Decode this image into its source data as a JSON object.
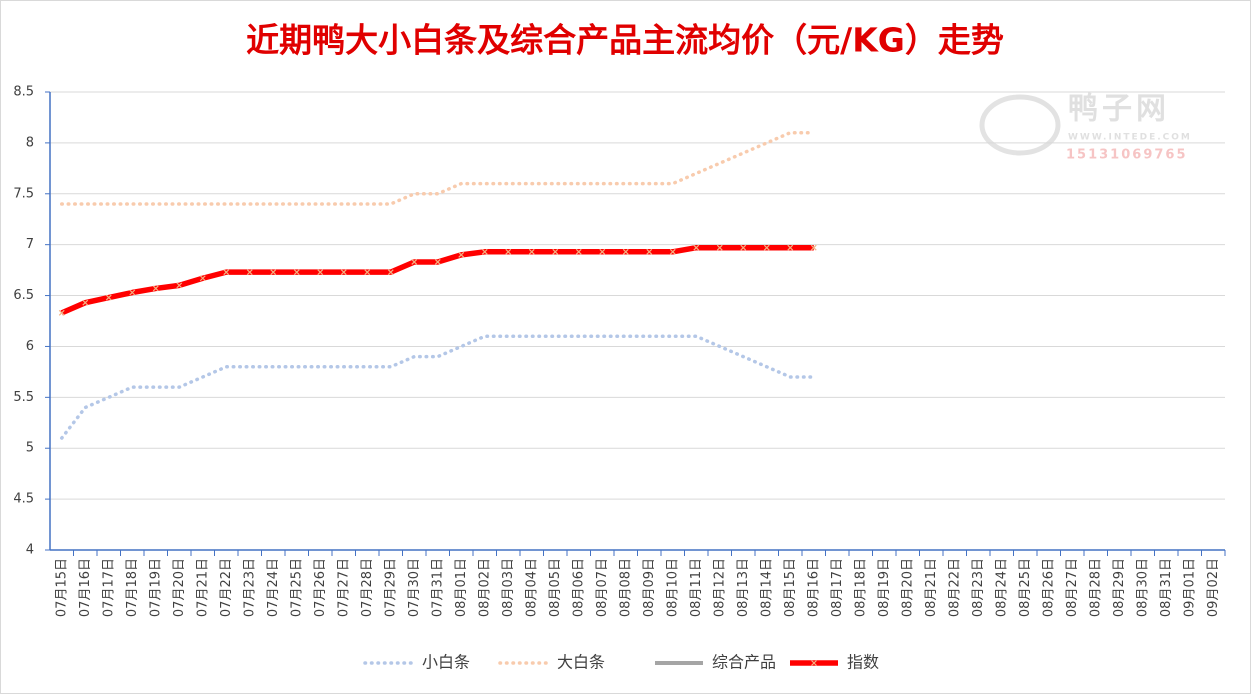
{
  "chart_data": {
    "type": "line",
    "title": "近期鸭大小白条及综合产品主流均价（元/KG）走势",
    "watermark": [
      "鸭子网",
      "WWW.INTEDE.COM",
      "15131069765"
    ],
    "categories": [
      "07月15日",
      "07月16日",
      "07月17日",
      "07月18日",
      "07月19日",
      "07月20日",
      "07月21日",
      "07月22日",
      "07月23日",
      "07月24日",
      "07月25日",
      "07月26日",
      "07月27日",
      "07月28日",
      "07月29日",
      "07月30日",
      "07月31日",
      "08月01日",
      "08月02日",
      "08月03日",
      "08月04日",
      "08月05日",
      "08月06日",
      "08月07日",
      "08月08日",
      "08月09日",
      "08月10日",
      "08月11日",
      "08月12日",
      "08月13日",
      "08月14日",
      "08月15日",
      "08月16日",
      "08月17日",
      "08月18日",
      "08月19日",
      "08月20日",
      "08月21日",
      "08月22日",
      "08月23日",
      "08月24日",
      "08月25日",
      "08月26日",
      "08月27日",
      "08月28日",
      "08月29日",
      "08月30日",
      "08月31日",
      "09月01日",
      "09月02日"
    ],
    "series": [
      {
        "name": "小白条",
        "color": "#b4c7e7",
        "style": "dotted",
        "values": [
          5.1,
          5.4,
          5.5,
          5.6,
          5.6,
          5.6,
          5.7,
          5.8,
          5.8,
          5.8,
          5.8,
          5.8,
          5.8,
          5.8,
          5.8,
          5.9,
          5.9,
          6.0,
          6.1,
          6.1,
          6.1,
          6.1,
          6.1,
          6.1,
          6.1,
          6.1,
          6.1,
          6.1,
          6.0,
          5.9,
          5.8,
          5.7,
          5.7,
          null,
          null,
          null,
          null,
          null,
          null,
          null,
          null,
          null,
          null,
          null,
          null,
          null,
          null,
          null,
          null,
          null
        ]
      },
      {
        "name": "大白条",
        "color": "#f8cbad",
        "style": "dotted",
        "values": [
          7.4,
          7.4,
          7.4,
          7.4,
          7.4,
          7.4,
          7.4,
          7.4,
          7.4,
          7.4,
          7.4,
          7.4,
          7.4,
          7.4,
          7.4,
          7.5,
          7.5,
          7.6,
          7.6,
          7.6,
          7.6,
          7.6,
          7.6,
          7.6,
          7.6,
          7.6,
          7.6,
          7.7,
          7.8,
          7.9,
          8.0,
          8.1,
          8.1,
          null,
          null,
          null,
          null,
          null,
          null,
          null,
          null,
          null,
          null,
          null,
          null,
          null,
          null,
          null,
          null,
          null
        ]
      },
      {
        "name": "综合产品",
        "color": "#a5a5a5",
        "style": "solid",
        "values": [
          6.33,
          6.43,
          6.48,
          6.53,
          6.57,
          6.6,
          6.67,
          6.73,
          6.73,
          6.73,
          6.73,
          6.73,
          6.73,
          6.73,
          6.73,
          6.83,
          6.83,
          6.9,
          6.93,
          6.93,
          6.93,
          6.93,
          6.93,
          6.93,
          6.93,
          6.93,
          6.93,
          6.97,
          6.97,
          6.97,
          6.97,
          6.97,
          6.97,
          null,
          null,
          null,
          null,
          null,
          null,
          null,
          null,
          null,
          null,
          null,
          null,
          null,
          null,
          null,
          null,
          null
        ]
      },
      {
        "name": "指数",
        "color": "#ff0000",
        "style": "marker",
        "values": [
          6.33,
          6.43,
          6.48,
          6.53,
          6.57,
          6.6,
          6.67,
          6.73,
          6.73,
          6.73,
          6.73,
          6.73,
          6.73,
          6.73,
          6.73,
          6.83,
          6.83,
          6.9,
          6.93,
          6.93,
          6.93,
          6.93,
          6.93,
          6.93,
          6.93,
          6.93,
          6.93,
          6.97,
          6.97,
          6.97,
          6.97,
          6.97,
          6.97,
          null,
          null,
          null,
          null,
          null,
          null,
          null,
          null,
          null,
          null,
          null,
          null,
          null,
          null,
          null,
          null,
          null
        ]
      }
    ],
    "ylim": [
      4,
      8.5
    ],
    "yticks": [
      4,
      4.5,
      5,
      5.5,
      6,
      6.5,
      7,
      7.5,
      8,
      8.5
    ],
    "grid": true,
    "legend": "bottom"
  }
}
